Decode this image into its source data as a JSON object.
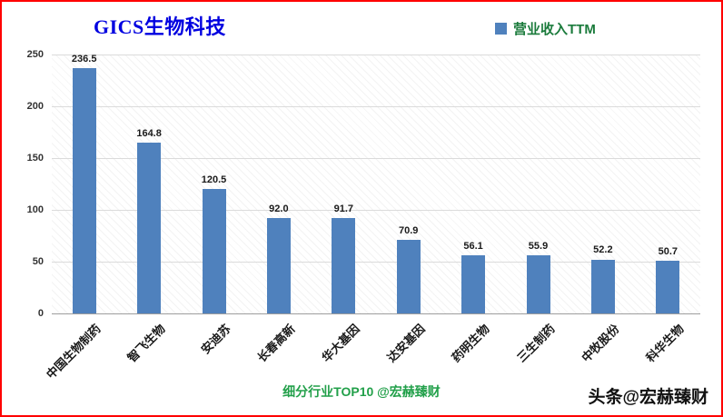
{
  "title": "GICS生物科技",
  "legend": "营业收入TTM",
  "footer_center": "细分行业TOP10 @宏赫臻财",
  "footer_right": "头条@宏赫臻财",
  "colors": {
    "bar": "#4F81BD",
    "title_blue": "#0000E0",
    "legend_green": "#1B7B3C",
    "footer_green": "#22A04A",
    "frame_red": "#FF0000"
  },
  "chart_data": {
    "type": "bar",
    "title": "GICS生物科技",
    "legend_entries": [
      "营业收入TTM"
    ],
    "legend_position": "top-right",
    "categories": [
      "中国生物制药",
      "智飞生物",
      "安迪苏",
      "长春高新",
      "华大基因",
      "达安基因",
      "药明生物",
      "三生制药",
      "中牧股份",
      "科华生物"
    ],
    "values": [
      236.5,
      164.8,
      120.5,
      92.0,
      91.7,
      70.9,
      56.1,
      55.9,
      52.2,
      50.7
    ],
    "xlabel": "",
    "ylabel": "",
    "ylim": [
      0,
      250
    ],
    "yticks": [
      0,
      50,
      100,
      150,
      200,
      250
    ],
    "grid": true,
    "value_labels": true
  }
}
